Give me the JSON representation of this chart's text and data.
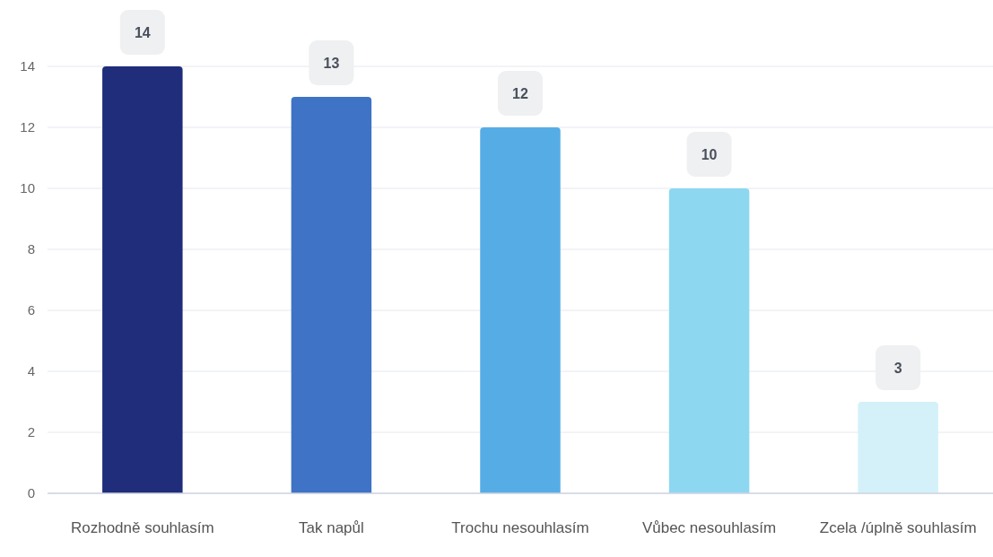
{
  "chart_data": {
    "type": "bar",
    "categories": [
      "Rozhodně souhlasím",
      "Tak napůl",
      "Trochu nesouhlasím",
      "Vůbec nesouhlasím",
      "Zcela /úplně souhlasím"
    ],
    "values": [
      14,
      13,
      12,
      10,
      3
    ],
    "colors": [
      "#1f2d7b",
      "#3e73c6",
      "#56ade6",
      "#8dd8f0",
      "#d4f1f9"
    ],
    "ylim": [
      0,
      14
    ],
    "yticks": [
      0,
      2,
      4,
      6,
      8,
      10,
      12,
      14
    ],
    "grid": "y",
    "data_labels": true
  }
}
